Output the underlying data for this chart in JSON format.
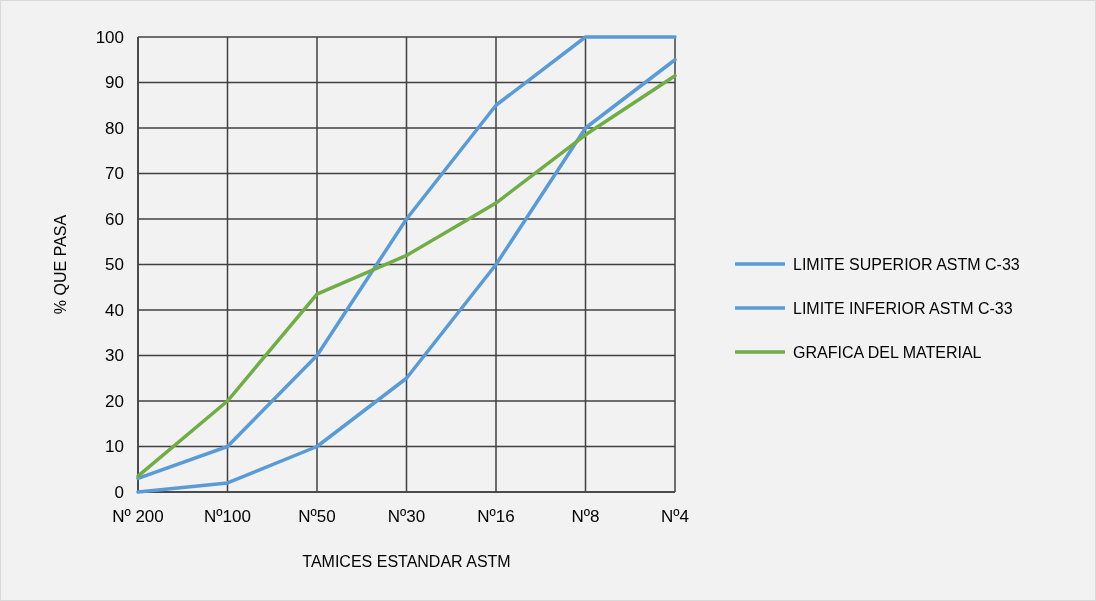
{
  "chart_data": {
    "type": "line",
    "xlabel": "TAMICES ESTANDAR ASTM",
    "ylabel": "% QUE PASA",
    "categories": [
      "Nº 200",
      "Nº100",
      "Nº50",
      "Nº30",
      "Nº16",
      "Nº8",
      "Nº4"
    ],
    "series": [
      {
        "name": "LIMITE SUPERIOR ASTM C-33",
        "color": "#5b9bd5",
        "values": [
          3,
          10,
          30,
          60,
          85,
          100,
          100
        ]
      },
      {
        "name": "LIMITE INFERIOR ASTM C-33",
        "color": "#5b9bd5",
        "values": [
          0,
          2,
          10,
          25,
          50,
          80,
          95
        ]
      },
      {
        "name": "GRAFICA DEL MATERIAL",
        "color": "#70ad47",
        "values": [
          3.5,
          20,
          43.5,
          52,
          63.5,
          78.5,
          91.5
        ]
      }
    ],
    "ylim": [
      0,
      100
    ],
    "yticks": [
      0,
      10,
      20,
      30,
      40,
      50,
      60,
      70,
      80,
      90,
      100
    ],
    "grid": true,
    "legend": "right",
    "marker": "none",
    "line_style": "solid"
  }
}
